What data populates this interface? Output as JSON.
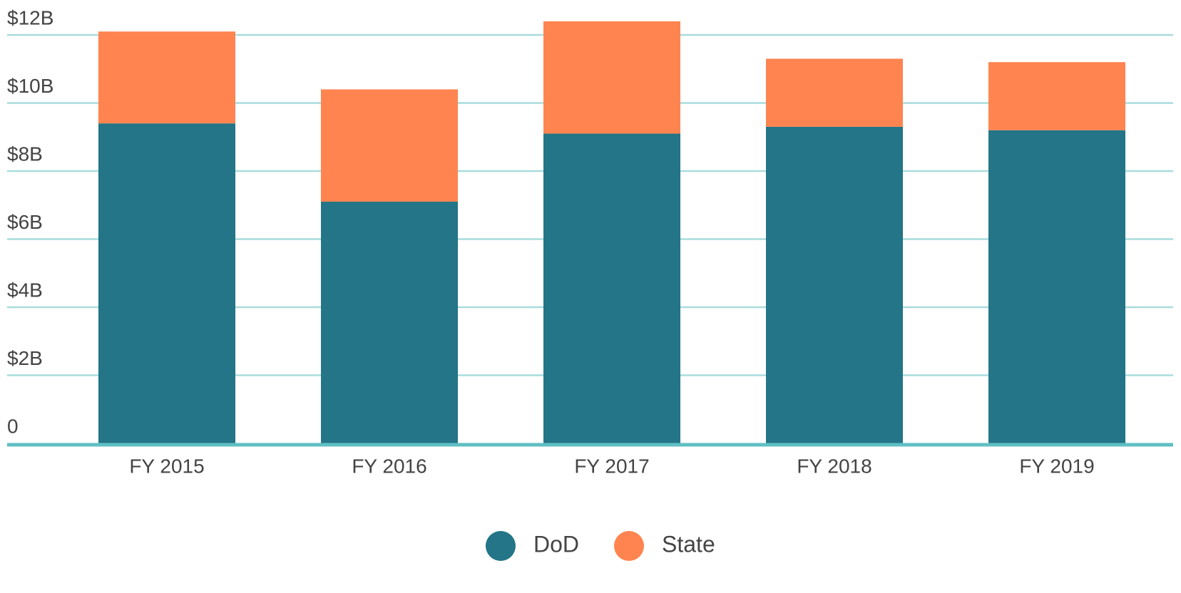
{
  "chart_data": {
    "type": "stacked_bar",
    "categories": [
      "FY 2015",
      "FY 2016",
      "FY 2017",
      "FY 2018",
      "FY 2019"
    ],
    "series": [
      {
        "name": "DoD",
        "color": "#237587",
        "values": [
          9.4,
          7.1,
          9.1,
          9.3,
          9.2
        ]
      },
      {
        "name": "State",
        "color": "#ff8450",
        "values": [
          2.7,
          3.3,
          3.3,
          2.0,
          2.0
        ]
      }
    ],
    "ylim": [
      0,
      12
    ],
    "yticks": [
      0,
      {
        "value": 2,
        "label": "$2B"
      },
      {
        "value": 4,
        "label": "$4B"
      },
      {
        "value": 6,
        "label": "$6B"
      },
      {
        "value": 8,
        "label": "$8B"
      },
      {
        "value": 10,
        "label": "$10B"
      },
      {
        "value": 12,
        "label": "$12B"
      }
    ],
    "grid": true,
    "legend": "bottom"
  }
}
